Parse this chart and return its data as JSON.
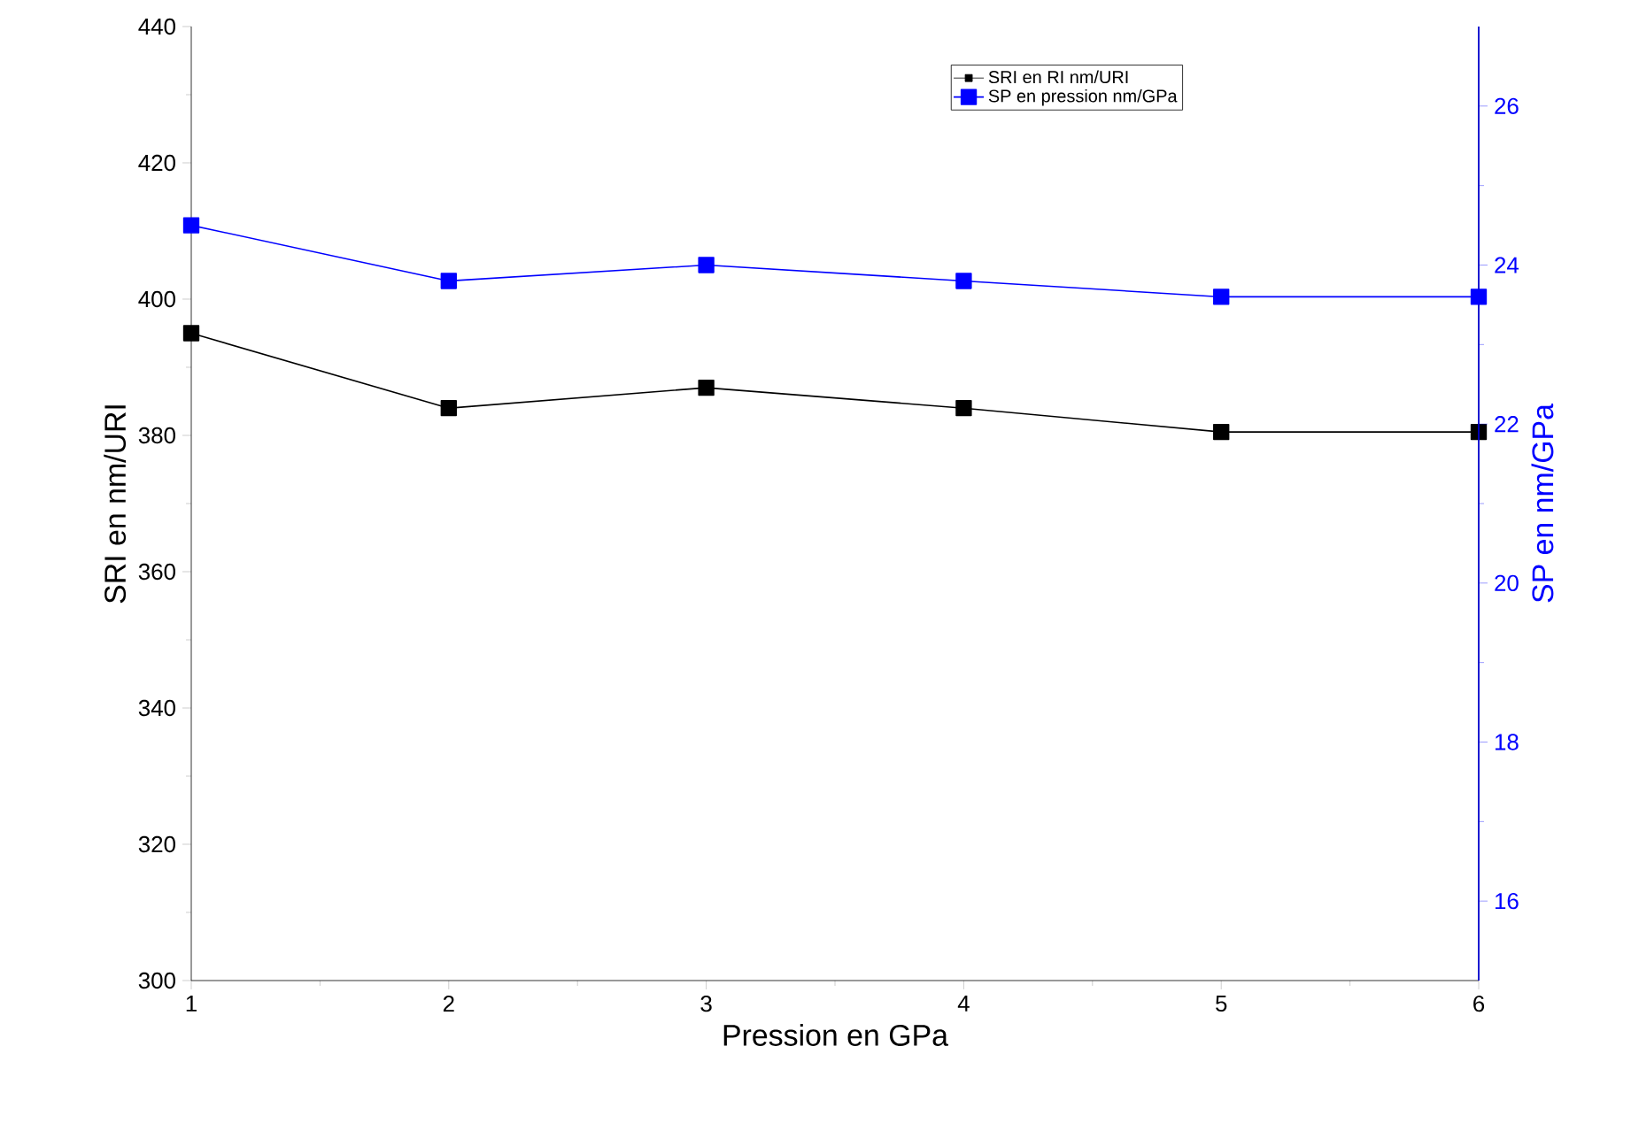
{
  "chart_data": {
    "type": "line",
    "xlabel": "Pression en GPa",
    "ylabel": "SRI en nm/URI",
    "y2label": "SP en nm/GPa",
    "x": [
      1,
      2,
      3,
      4,
      5,
      6
    ],
    "series": [
      {
        "name": "SRI en RI nm/URI",
        "color": "#000000",
        "values": [
          395,
          384,
          387,
          384,
          380.5,
          380.5
        ]
      },
      {
        "name": "SP en pression nm/GPa",
        "color": "#0000ff",
        "axis": "y2",
        "values": [
          24.5,
          23.8,
          24.0,
          23.8,
          23.6,
          23.6
        ]
      }
    ],
    "xlim": [
      1,
      6
    ],
    "xticks": [
      1,
      2,
      3,
      4,
      5,
      6
    ],
    "ylim": [
      300,
      440
    ],
    "yticks": [
      300,
      320,
      340,
      360,
      380,
      400,
      420,
      440
    ],
    "y2lim": [
      15,
      27
    ],
    "y2ticks": [
      16,
      18,
      20,
      22,
      24,
      26
    ],
    "grid": false,
    "legend": "top right",
    "marker": "square",
    "line_style": "solid"
  }
}
